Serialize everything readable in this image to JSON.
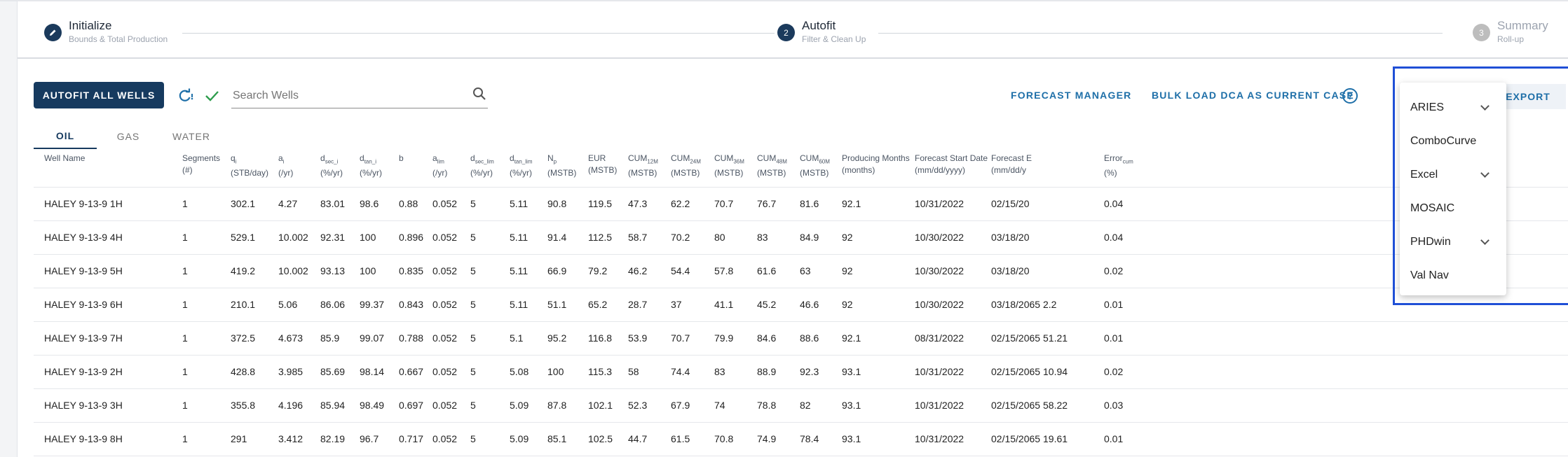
{
  "stepper": {
    "steps": [
      {
        "title": "Initialize",
        "subtitle": "Bounds & Total Production",
        "icon": "pencil-icon"
      },
      {
        "number": "2",
        "title": "Autofit",
        "subtitle": "Filter & Clean Up"
      },
      {
        "number": "3",
        "title": "Summary",
        "subtitle": "Roll-up"
      }
    ]
  },
  "toolbar": {
    "autofit_label": "AUTOFIT ALL WELLS",
    "search_placeholder": "Search Wells",
    "forecast_manager_label": "FORECAST MANAGER",
    "bulk_load_label": "BULK LOAD DCA AS CURRENT CASE",
    "help_glyph": "?",
    "export_label": "EXPORT"
  },
  "tabs": [
    {
      "label": "OIL",
      "active": true
    },
    {
      "label": "GAS",
      "active": false
    },
    {
      "label": "WATER",
      "active": false
    }
  ],
  "table": {
    "headers": [
      {
        "l1": "Well Name",
        "l2": ""
      },
      {
        "l1": "Segments",
        "l2": "(#)"
      },
      {
        "l1": "q",
        "sub": "i",
        "l2": "(STB/day)"
      },
      {
        "l1": "a",
        "sub": "i",
        "l2": "(/yr)"
      },
      {
        "l1": "d",
        "sub": "sec_i",
        "l2": "(%/yr)"
      },
      {
        "l1": "d",
        "sub": "tan_i",
        "l2": "(%/yr)"
      },
      {
        "l1": "b",
        "l2": ""
      },
      {
        "l1": "a",
        "sub": "lim",
        "l2": "(/yr)"
      },
      {
        "l1": "d",
        "sub": "sec_lim",
        "l2": "(%/yr)"
      },
      {
        "l1": "d",
        "sub": "tan_lim",
        "l2": "(%/yr)"
      },
      {
        "l1": "N",
        "sub": "p",
        "l2": "(MSTB)"
      },
      {
        "l1": "EUR",
        "l2": "(MSTB)"
      },
      {
        "l1": "CUM",
        "sub": "12M",
        "l2": "(MSTB)"
      },
      {
        "l1": "CUM",
        "sub": "24M",
        "l2": "(MSTB)"
      },
      {
        "l1": "CUM",
        "sub": "36M",
        "l2": "(MSTB)"
      },
      {
        "l1": "CUM",
        "sub": "48M",
        "l2": "(MSTB)"
      },
      {
        "l1": "CUM",
        "sub": "60M",
        "l2": "(MSTB)"
      },
      {
        "l1": "Producing Months",
        "l2": "(months)"
      },
      {
        "l1": "Forecast Start Date",
        "l2": "(mm/dd/yyyy)"
      },
      {
        "l1": "Forecast E",
        "l2": "(mm/dd/y"
      },
      {
        "l1": "",
        "l2": ""
      },
      {
        "l1": "Error",
        "sub": "cum",
        "l2": "(%)"
      }
    ],
    "rows": [
      [
        "HALEY 9-13-9 1H",
        "1",
        "302.1",
        "4.27",
        "83.01",
        "98.6",
        "0.88",
        "0.052",
        "5",
        "5.11",
        "90.8",
        "119.5",
        "47.3",
        "62.2",
        "70.7",
        "76.7",
        "81.6",
        "92.1",
        "10/31/2022",
        "02/15/20",
        "",
        "0.04"
      ],
      [
        "HALEY 9-13-9 4H",
        "1",
        "529.1",
        "10.002",
        "92.31",
        "100",
        "0.896",
        "0.052",
        "5",
        "5.11",
        "91.4",
        "112.5",
        "58.7",
        "70.2",
        "80",
        "83",
        "84.9",
        "92",
        "10/30/2022",
        "03/18/20",
        "",
        "0.04"
      ],
      [
        "HALEY 9-13-9 5H",
        "1",
        "419.2",
        "10.002",
        "93.13",
        "100",
        "0.835",
        "0.052",
        "5",
        "5.11",
        "66.9",
        "79.2",
        "46.2",
        "54.4",
        "57.8",
        "61.6",
        "63",
        "92",
        "10/30/2022",
        "03/18/20",
        "",
        "0.02"
      ],
      [
        "HALEY 9-13-9 6H",
        "1",
        "210.1",
        "5.06",
        "86.06",
        "99.37",
        "0.843",
        "0.052",
        "5",
        "5.11",
        "51.1",
        "65.2",
        "28.7",
        "37",
        "41.1",
        "45.2",
        "46.6",
        "92",
        "10/30/2022",
        "03/18/2065",
        "2.2",
        "0.01"
      ],
      [
        "HALEY 9-13-9 7H",
        "1",
        "372.5",
        "4.673",
        "85.9",
        "99.07",
        "0.788",
        "0.052",
        "5",
        "5.1",
        "95.2",
        "116.8",
        "53.9",
        "70.7",
        "79.9",
        "84.6",
        "88.6",
        "92.1",
        "08/31/2022",
        "02/15/2065",
        "51.21",
        "0.01"
      ],
      [
        "HALEY 9-13-9 2H",
        "1",
        "428.8",
        "3.985",
        "85.69",
        "98.14",
        "0.667",
        "0.052",
        "5",
        "5.08",
        "100",
        "115.3",
        "58",
        "74.4",
        "83",
        "88.9",
        "92.3",
        "93.1",
        "10/31/2022",
        "02/15/2065",
        "10.94",
        "0.02"
      ],
      [
        "HALEY 9-13-9 3H",
        "1",
        "355.8",
        "4.196",
        "85.94",
        "98.49",
        "0.697",
        "0.052",
        "5",
        "5.09",
        "87.8",
        "102.1",
        "52.3",
        "67.9",
        "74",
        "78.8",
        "82",
        "93.1",
        "10/31/2022",
        "02/15/2065",
        "58.22",
        "0.03"
      ],
      [
        "HALEY 9-13-9 8H",
        "1",
        "291",
        "3.412",
        "82.19",
        "96.7",
        "0.717",
        "0.052",
        "5",
        "5.09",
        "85.1",
        "102.5",
        "44.7",
        "61.5",
        "70.8",
        "74.9",
        "78.4",
        "93.1",
        "10/31/2022",
        "02/15/2065",
        "19.61",
        "0.01"
      ]
    ]
  },
  "export_menu": [
    {
      "label": "ARIES",
      "has_submenu": true
    },
    {
      "label": "ComboCurve",
      "has_submenu": false
    },
    {
      "label": "Excel",
      "has_submenu": true
    },
    {
      "label": "MOSAIC",
      "has_submenu": false
    },
    {
      "label": "PHDwin",
      "has_submenu": true
    },
    {
      "label": "Val Nav",
      "has_submenu": false
    }
  ],
  "colors": {
    "primary": "#163a5f",
    "link": "#1e6fa8",
    "success": "#2e9d4d",
    "highlight": "#1f4fd6"
  }
}
